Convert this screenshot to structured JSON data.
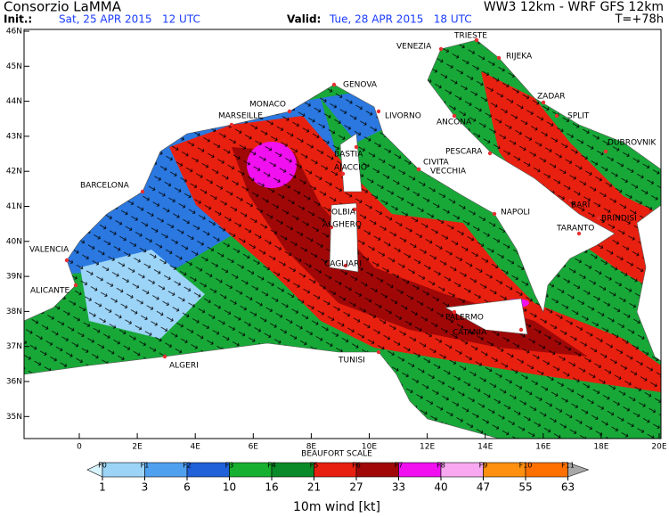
{
  "header": {
    "title": "Consorzio LaMMA",
    "init_label": "Init.:",
    "init_value": "Sat, 25 APR 2015   12 UTC",
    "valid_label": "Valid:",
    "valid_value": "Tue, 28 APR 2015   18 UTC",
    "model": "WW3 12km - WRF GFS 12km",
    "lead_time": "T=+78h"
  },
  "map": {
    "lat_labels": [
      "46N",
      "45N",
      "44N",
      "43N",
      "42N",
      "41N",
      "40N",
      "39N",
      "38N",
      "37N",
      "36N",
      "35N"
    ],
    "lon_labels": [
      "0",
      "2E",
      "4E",
      "6E",
      "8E",
      "10E",
      "12E",
      "14E",
      "16E",
      "18E",
      "20E"
    ],
    "cities": [
      "VENEZIA",
      "TRIESTE",
      "RIJEKA",
      "GENOVA",
      "MONACO",
      "MARSEILLE",
      "LIVORNO",
      "ANCONA",
      "ZADAR",
      "SPLIT",
      "DUBROVNIK",
      "PESCARA",
      "BASTIA",
      "AJACCIO",
      "CIVITA",
      "VECCHIA",
      "BARCELONA",
      "NAPOLI",
      "BARI",
      "BRINDISI",
      "TARANTO",
      "OLBIA",
      "ALGHERO",
      "VALENCIA",
      "CAGLIARI",
      "ALICANTE",
      "PALERMO",
      "CATANIA",
      "ALGERI",
      "TUNISI"
    ]
  },
  "colorbar": {
    "scale_title": "BEAUFORT SCALE",
    "beaufort": [
      "F0",
      "F1",
      "F2",
      "F3",
      "F4",
      "F5",
      "F6",
      "F7",
      "F8",
      "F9",
      "F10",
      "F11"
    ],
    "values": [
      1,
      3,
      6,
      10,
      16,
      21,
      27,
      33,
      40,
      47,
      55,
      63
    ],
    "colors": [
      "#d8f4ff",
      "#9cd4f8",
      "#50a0f0",
      "#2060d8",
      "#18b030",
      "#0a8a28",
      "#e82010",
      "#a00808",
      "#f010f0",
      "#f8a8f0",
      "#ff9010",
      "#ff7000",
      "#a8a8a8"
    ],
    "title": "10m wind [kt]"
  }
}
